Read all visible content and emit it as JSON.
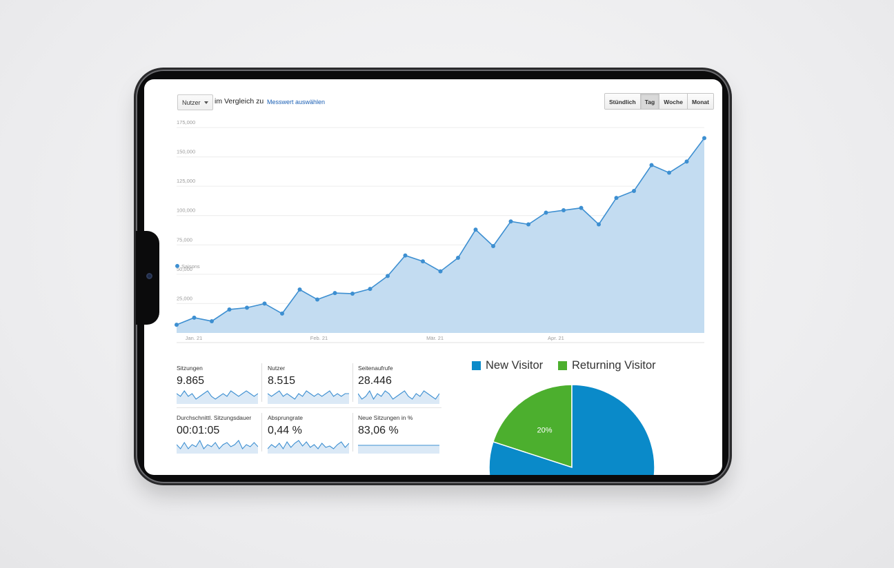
{
  "toolbar": {
    "metric_select": "Nutzer",
    "compare_text": "im Vergleich zu",
    "compare_link": "Messwert auswählen",
    "period_buttons": [
      "Stündlich",
      "Tag",
      "Woche",
      "Monat"
    ],
    "active_period": "Tag"
  },
  "chart_data": [
    {
      "type": "area",
      "series": [
        {
          "name": "Saisons",
          "values": [
            7000,
            13000,
            10000,
            20000,
            21500,
            25000,
            16500,
            37000,
            28500,
            34000,
            33500,
            37500,
            48500,
            66000,
            61000,
            52500,
            64000,
            88000,
            74000,
            95000,
            92500,
            102500,
            104500,
            106500,
            92500,
            115000,
            121000,
            143000,
            136500,
            146000,
            166000
          ]
        }
      ],
      "x_tick_labels": [
        "Jan. 21",
        "Feb. 21",
        "Mär. 21",
        "Apr. 21"
      ],
      "y_tick_labels": [
        "25,000",
        "50,000",
        "75,000",
        "100,000",
        "125,000",
        "150,000",
        "175,000"
      ],
      "ylim": [
        0,
        175000
      ],
      "grid": true,
      "legend_position": "left",
      "colors": {
        "line": "#3d8fd1",
        "fill": "#c3dcf1"
      }
    },
    {
      "type": "pie",
      "categories": [
        "New Visitor",
        "Returning Visitor"
      ],
      "values": [
        80,
        20
      ],
      "data_labels": [
        "",
        "20%"
      ],
      "legend_position": "top",
      "colors": [
        "#0a8ac9",
        "#4caf2e"
      ]
    }
  ],
  "kpis": [
    {
      "label": "Sitzungen",
      "value": "9.865",
      "spark": [
        5,
        4,
        6,
        4,
        5,
        3,
        4,
        5,
        6,
        4,
        3,
        4,
        5,
        4,
        6,
        5,
        4,
        5,
        6,
        5,
        4,
        5
      ]
    },
    {
      "label": "Nutzer",
      "value": "8.515",
      "spark": [
        5,
        4,
        5,
        6,
        4,
        5,
        4,
        3,
        5,
        4,
        6,
        5,
        4,
        5,
        4,
        5,
        6,
        4,
        5,
        4,
        5,
        5
      ]
    },
    {
      "label": "Seitenaufrufe",
      "value": "28.446",
      "spark": [
        5,
        3,
        4,
        6,
        3,
        5,
        4,
        6,
        5,
        3,
        4,
        5,
        6,
        4,
        3,
        5,
        4,
        6,
        5,
        4,
        3,
        5
      ]
    },
    {
      "label": "Durchschnittl. Sitzungsdauer",
      "value": "00:01:05",
      "spark": [
        5,
        3,
        6,
        3,
        5,
        4,
        7,
        3,
        5,
        4,
        6,
        3,
        5,
        6,
        4,
        5,
        7,
        3,
        5,
        4,
        6,
        4
      ]
    },
    {
      "label": "Absprungrate",
      "value": "0,44 %",
      "spark": [
        2,
        5,
        3,
        6,
        2,
        7,
        3,
        6,
        8,
        4,
        7,
        3,
        5,
        2,
        6,
        3,
        4,
        2,
        5,
        7,
        3,
        6
      ]
    },
    {
      "label": "Neue Sitzungen in %",
      "value": "83,06 %",
      "spark": [
        5,
        5,
        5,
        5,
        5,
        5,
        5,
        5,
        5,
        5,
        5,
        5,
        5,
        5,
        5,
        5,
        5,
        5,
        5,
        5,
        5,
        5
      ]
    }
  ]
}
